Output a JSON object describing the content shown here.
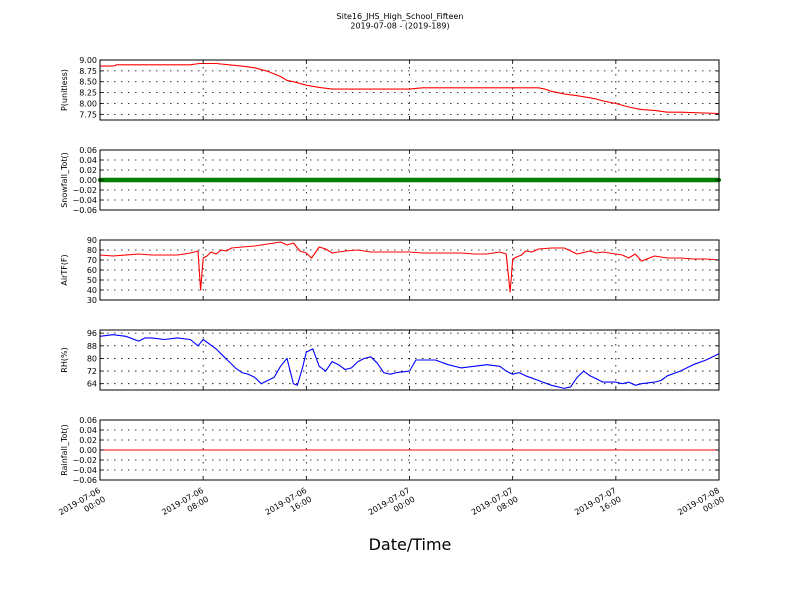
{
  "title_line1": "Site16_JHS_High_School_Fifteen",
  "title_line2": "2019-07-08 - (2019-189)",
  "xlabel": "Date/Time",
  "x_ticks": [
    {
      "label": "2019-07-06\n00:00",
      "t": 0
    },
    {
      "label": "2019-07-06\n08:00",
      "t": 8
    },
    {
      "label": "2019-07-06\n16:00",
      "t": 16
    },
    {
      "label": "2019-07-07\n00:00",
      "t": 24
    },
    {
      "label": "2019-07-07\n08:00",
      "t": 32
    },
    {
      "label": "2019-07-07\n16:00",
      "t": 40
    },
    {
      "label": "2019-07-08\n00:00",
      "t": 48
    }
  ],
  "colors": {
    "p": "#ff0000",
    "snow": "#008000",
    "air": "#ff0000",
    "rh": "#0000ff",
    "rain": "#ff0000"
  },
  "chart_data": [
    {
      "type": "line",
      "ylabel": "P(unitless)",
      "x_range": [
        "2019-07-06 00:00",
        "2019-07-08 00:00"
      ],
      "ylim": [
        7.62,
        9.0
      ],
      "yticks": [
        "9.00",
        "8.75",
        "8.50",
        "8.25",
        "8.00",
        "7.75"
      ],
      "ytick_values": [
        9.0,
        8.75,
        8.5,
        8.25,
        8.0,
        7.75
      ],
      "grid": true,
      "series": [
        {
          "color": "#ff0000",
          "x_hours": [
            0,
            1,
            1.3,
            7,
            7.7,
            9,
            10,
            11,
            12,
            13,
            14,
            14.5,
            15,
            16,
            17,
            18,
            23,
            24,
            25,
            33,
            34,
            34.5,
            35,
            36,
            37,
            38,
            38.5,
            39,
            40,
            41,
            42,
            43,
            44,
            45,
            48
          ],
          "values": [
            8.86,
            8.86,
            8.89,
            8.89,
            8.92,
            8.92,
            8.89,
            8.86,
            8.82,
            8.74,
            8.62,
            8.53,
            8.5,
            8.42,
            8.37,
            8.33,
            8.33,
            8.33,
            8.36,
            8.36,
            8.36,
            8.33,
            8.28,
            8.22,
            8.18,
            8.13,
            8.1,
            8.06,
            8.0,
            7.92,
            7.86,
            7.84,
            7.8,
            7.8,
            7.77
          ]
        }
      ]
    },
    {
      "type": "line",
      "ylabel": "Snowfall_Tot()",
      "x_range": [
        "2019-07-06 00:00",
        "2019-07-08 00:00"
      ],
      "ylim": [
        -0.06,
        0.06
      ],
      "yticks": [
        "0.06",
        "0.04",
        "0.02",
        "0.00",
        "−0.02",
        "−0.04",
        "−0.06"
      ],
      "ytick_values": [
        0.06,
        0.04,
        0.02,
        0.0,
        -0.02,
        -0.04,
        -0.06
      ],
      "grid": true,
      "series": [
        {
          "color": "#008000",
          "x_hours": [
            0,
            48
          ],
          "values": [
            0,
            0
          ],
          "marker": "dot"
        }
      ]
    },
    {
      "type": "line",
      "ylabel": "AirTF(F)",
      "x_range": [
        "2019-07-06 00:00",
        "2019-07-08 00:00"
      ],
      "ylim": [
        30,
        90
      ],
      "yticks": [
        "90",
        "80",
        "70",
        "60",
        "50",
        "40",
        "30"
      ],
      "ytick_values": [
        90,
        80,
        70,
        60,
        50,
        40,
        30
      ],
      "grid": true,
      "series": [
        {
          "color": "#ff0000",
          "x_hours": [
            0,
            1,
            3,
            4,
            5,
            6,
            7,
            7.6,
            7.8,
            8,
            8.3,
            8.6,
            9,
            9.4,
            9.8,
            10.2,
            11,
            12,
            13,
            14,
            14.5,
            15,
            15.5,
            16,
            16.4,
            17,
            17.5,
            18,
            19,
            20,
            21,
            22,
            23,
            24,
            25,
            26,
            27,
            28,
            29,
            30,
            31,
            31.5,
            31.8,
            32,
            32.3,
            32.7,
            33,
            33.5,
            34,
            35,
            36,
            37,
            38,
            38.5,
            39,
            40,
            40.5,
            41,
            41.5,
            42,
            43,
            44,
            45,
            46,
            47,
            48
          ],
          "values": [
            75,
            74,
            76,
            75,
            75,
            75,
            77,
            79,
            40,
            72,
            74,
            78,
            76,
            80,
            79,
            82,
            83,
            84,
            86,
            88,
            85,
            87,
            79,
            77,
            72,
            83,
            81,
            77,
            79,
            80,
            78,
            78,
            78,
            78,
            77,
            77,
            77,
            77,
            76,
            76,
            78,
            76,
            38,
            71,
            73,
            75,
            79,
            78,
            81,
            82,
            82,
            76,
            79,
            77,
            78,
            76,
            75,
            72,
            76,
            69,
            74,
            72,
            72,
            71,
            71,
            70
          ]
        }
      ]
    },
    {
      "type": "line",
      "ylabel": "RH(%)",
      "x_range": [
        "2019-07-06 00:00",
        "2019-07-08 00:00"
      ],
      "ylim": [
        60,
        98
      ],
      "yticks": [
        "96",
        "88",
        "80",
        "72",
        "64"
      ],
      "ytick_values": [
        96,
        88,
        80,
        72,
        64
      ],
      "grid": true,
      "series": [
        {
          "color": "#0000ff",
          "x_hours": [
            0,
            1,
            2,
            3,
            3.5,
            4,
            5,
            6,
            7,
            7.6,
            8,
            9,
            9.5,
            10,
            10.5,
            11,
            11.5,
            12,
            12.5,
            13,
            13.5,
            14,
            14.5,
            15,
            15.3,
            15.7,
            16,
            16.5,
            17,
            17.5,
            18,
            18.5,
            19,
            19.5,
            20,
            20.5,
            21,
            21.5,
            22,
            22.5,
            23,
            24,
            24.5,
            25,
            26,
            27,
            28,
            29,
            30,
            31,
            31.5,
            32,
            32.5,
            33,
            34,
            35,
            36,
            36.5,
            37,
            37.5,
            38,
            38.5,
            39,
            40,
            40.5,
            41,
            41.5,
            42,
            43,
            43.5,
            44,
            45,
            45.5,
            46,
            47,
            48
          ],
          "values": [
            94,
            95,
            94,
            91,
            93,
            93,
            92,
            93,
            92,
            88,
            92,
            86,
            82,
            78,
            74,
            71,
            70,
            68,
            64,
            66,
            68,
            75,
            80,
            64,
            63,
            74,
            84,
            86,
            75,
            72,
            78,
            76,
            73,
            74,
            78,
            80,
            81,
            77,
            71,
            70,
            71,
            72,
            79,
            79,
            79,
            76,
            74,
            75,
            76,
            75,
            72,
            70,
            71,
            69,
            66,
            63,
            61,
            62,
            68,
            72,
            69,
            67,
            65,
            65,
            64,
            65,
            63,
            64,
            65,
            66,
            69,
            72,
            74,
            76,
            79,
            83
          ]
        }
      ]
    },
    {
      "type": "line",
      "ylabel": "Rainfall_Tot()",
      "x_range": [
        "2019-07-06 00:00",
        "2019-07-08 00:00"
      ],
      "ylim": [
        -0.06,
        0.06
      ],
      "yticks": [
        "0.06",
        "0.04",
        "0.02",
        "0.00",
        "−0.02",
        "−0.04",
        "−0.06"
      ],
      "ytick_values": [
        0.06,
        0.04,
        0.02,
        0.0,
        -0.02,
        -0.04,
        -0.06
      ],
      "grid": true,
      "series": [
        {
          "color": "#ff0000",
          "x_hours": [
            0,
            48
          ],
          "values": [
            0,
            0
          ]
        }
      ]
    }
  ]
}
